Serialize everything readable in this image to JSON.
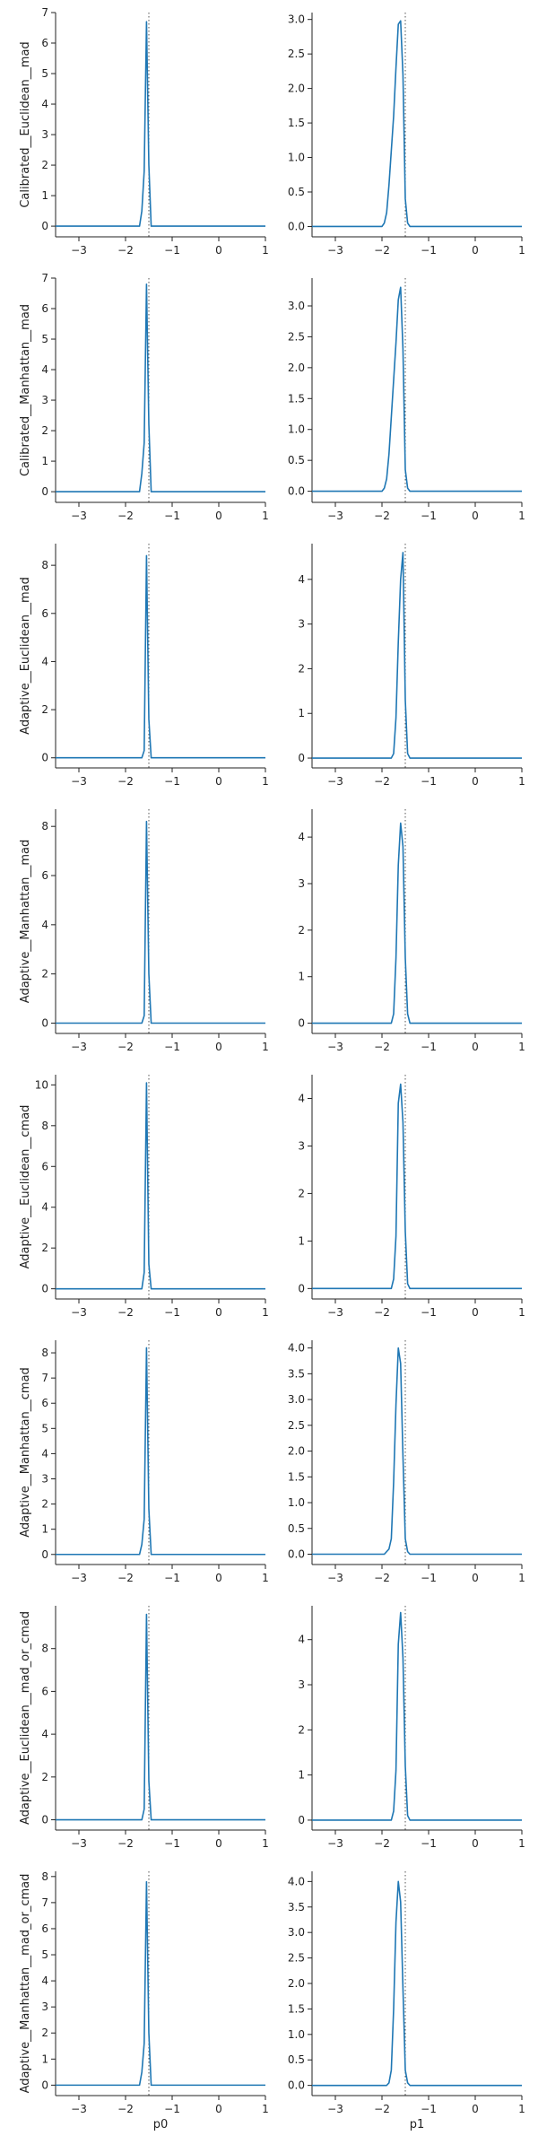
{
  "chart_data": {
    "type": "line",
    "layout": "8 rows x 2 columns of small-multiple density plots",
    "columns": [
      "p0",
      "p1"
    ],
    "series_color": "#1f77b4",
    "reference_line": {
      "x": -1.5,
      "style": "dotted",
      "color": "#555555"
    },
    "xlim": [
      -3.5,
      1.0
    ],
    "xticks": [
      -3,
      -2,
      -1,
      0,
      1
    ],
    "xtick_labels": [
      "−3",
      "−2",
      "−1",
      "0",
      "1"
    ],
    "rows": [
      {
        "ylabel": "Calibrated__Euclidean__mad",
        "panels": [
          {
            "ylim": [
              -0.35,
              7.0
            ],
            "yticks": [
              0,
              1,
              2,
              3,
              4,
              5,
              6,
              7
            ],
            "ytick_labels": [
              "0",
              "1",
              "2",
              "3",
              "4",
              "5",
              "6",
              "7"
            ],
            "x": [
              -3.5,
              -1.7,
              -1.65,
              -1.6,
              -1.55,
              -1.5,
              -1.45,
              -1.4,
              1.0
            ],
            "y": [
              0,
              0,
              0.5,
              1.8,
              6.7,
              2.0,
              0,
              0,
              0
            ]
          },
          {
            "ylim": [
              -0.15,
              3.1
            ],
            "yticks": [
              0,
              0.5,
              1,
              1.5,
              2,
              2.5,
              3
            ],
            "ytick_labels": [
              "0.0",
              "0.5",
              "1.0",
              "1.5",
              "2.0",
              "2.5",
              "3.0"
            ],
            "x": [
              -3.5,
              -2.0,
              -1.95,
              -1.9,
              -1.85,
              -1.8,
              -1.75,
              -1.7,
              -1.65,
              -1.6,
              -1.55,
              -1.5,
              -1.45,
              -1.4,
              1.0
            ],
            "y": [
              0,
              0,
              0.05,
              0.2,
              0.6,
              1.1,
              1.6,
              2.3,
              2.93,
              2.98,
              2.2,
              0.4,
              0.05,
              0,
              0
            ]
          }
        ]
      },
      {
        "ylabel": "Calibrated__Manhattan__mad",
        "panels": [
          {
            "ylim": [
              -0.35,
              7.0
            ],
            "yticks": [
              0,
              1,
              2,
              3,
              4,
              5,
              6,
              7
            ],
            "ytick_labels": [
              "0",
              "1",
              "2",
              "3",
              "4",
              "5",
              "6",
              "7"
            ],
            "x": [
              -3.5,
              -1.7,
              -1.65,
              -1.6,
              -1.55,
              -1.5,
              -1.45,
              -1.4,
              1.0
            ],
            "y": [
              0,
              0,
              0.6,
              1.6,
              6.8,
              2.2,
              0,
              0,
              0
            ]
          },
          {
            "ylim": [
              -0.18,
              3.45
            ],
            "yticks": [
              0,
              0.5,
              1,
              1.5,
              2,
              2.5,
              3
            ],
            "ytick_labels": [
              "0.0",
              "0.5",
              "1.0",
              "1.5",
              "2.0",
              "2.5",
              "3.0"
            ],
            "x": [
              -3.5,
              -2.0,
              -1.95,
              -1.9,
              -1.85,
              -1.8,
              -1.75,
              -1.7,
              -1.65,
              -1.6,
              -1.55,
              -1.5,
              -1.45,
              -1.4,
              1.0
            ],
            "y": [
              0,
              0,
              0.05,
              0.2,
              0.6,
              1.2,
              1.8,
              2.4,
              3.1,
              3.3,
              2.3,
              0.35,
              0.05,
              0,
              0
            ]
          }
        ]
      },
      {
        "ylabel": "Adaptive__Euclidean__mad",
        "panels": [
          {
            "ylim": [
              -0.42,
              8.9
            ],
            "yticks": [
              0,
              2,
              4,
              6,
              8
            ],
            "ytick_labels": [
              "0",
              "2",
              "4",
              "6",
              "8"
            ],
            "x": [
              -3.5,
              -1.65,
              -1.6,
              -1.55,
              -1.5,
              -1.45,
              -1.4,
              1.0
            ],
            "y": [
              0,
              0,
              0.3,
              8.4,
              1.6,
              0,
              0,
              0
            ]
          },
          {
            "ylim": [
              -0.22,
              4.8
            ],
            "yticks": [
              0,
              1,
              2,
              3,
              4
            ],
            "ytick_labels": [
              "0",
              "1",
              "2",
              "3",
              "4"
            ],
            "x": [
              -3.5,
              -1.8,
              -1.75,
              -1.7,
              -1.65,
              -1.6,
              -1.55,
              -1.5,
              -1.45,
              -1.4,
              1.0
            ],
            "y": [
              0,
              0,
              0.1,
              0.9,
              2.6,
              4.0,
              4.6,
              1.3,
              0.1,
              0,
              0
            ]
          }
        ]
      },
      {
        "ylabel": "Adaptive__Manhattan__mad",
        "panels": [
          {
            "ylim": [
              -0.42,
              8.7
            ],
            "yticks": [
              0,
              2,
              4,
              6,
              8
            ],
            "ytick_labels": [
              "0",
              "2",
              "4",
              "6",
              "8"
            ],
            "x": [
              -3.5,
              -1.65,
              -1.6,
              -1.55,
              -1.5,
              -1.45,
              -1.4,
              1.0
            ],
            "y": [
              0,
              0,
              0.3,
              8.2,
              2.0,
              0,
              0,
              0
            ]
          },
          {
            "ylim": [
              -0.22,
              4.6
            ],
            "yticks": [
              0,
              1,
              2,
              3,
              4
            ],
            "ytick_labels": [
              "0",
              "1",
              "2",
              "3",
              "4"
            ],
            "x": [
              -3.5,
              -1.8,
              -1.75,
              -1.7,
              -1.65,
              -1.6,
              -1.55,
              -1.5,
              -1.45,
              -1.4,
              1.0
            ],
            "y": [
              0,
              0,
              0.2,
              1.4,
              3.4,
              4.3,
              3.8,
              1.4,
              0.2,
              0,
              0
            ]
          }
        ]
      },
      {
        "ylabel": "Adaptive__Euclidean__cmad",
        "panels": [
          {
            "ylim": [
              -0.5,
              10.5
            ],
            "yticks": [
              0,
              2,
              4,
              6,
              8,
              10
            ],
            "ytick_labels": [
              "0",
              "2",
              "4",
              "6",
              "8",
              "10"
            ],
            "x": [
              -3.5,
              -1.65,
              -1.6,
              -1.55,
              -1.5,
              -1.45,
              -1.4,
              1.0
            ],
            "y": [
              0,
              0,
              0.8,
              10.1,
              1.2,
              0,
              0,
              0
            ]
          },
          {
            "ylim": [
              -0.22,
              4.5
            ],
            "yticks": [
              0,
              1,
              2,
              3,
              4
            ],
            "ytick_labels": [
              "0",
              "1",
              "2",
              "3",
              "4"
            ],
            "x": [
              -3.5,
              -1.8,
              -1.75,
              -1.7,
              -1.65,
              -1.6,
              -1.55,
              -1.5,
              -1.45,
              -1.4,
              1.0
            ],
            "y": [
              0,
              0,
              0.2,
              1.1,
              3.9,
              4.3,
              3.5,
              1.2,
              0.1,
              0,
              0
            ]
          }
        ]
      },
      {
        "ylabel": "Adaptive__Manhattan__cmad",
        "panels": [
          {
            "ylim": [
              -0.4,
              8.5
            ],
            "yticks": [
              0,
              1,
              2,
              3,
              4,
              5,
              6,
              7,
              8
            ],
            "ytick_labels": [
              "0",
              "1",
              "2",
              "3",
              "4",
              "5",
              "6",
              "7",
              "8"
            ],
            "x": [
              -3.5,
              -1.7,
              -1.65,
              -1.6,
              -1.55,
              -1.5,
              -1.45,
              -1.4,
              1.0
            ],
            "y": [
              0,
              0,
              0.4,
              1.4,
              8.2,
              1.8,
              0,
              0,
              0
            ]
          },
          {
            "ylim": [
              -0.2,
              4.15
            ],
            "yticks": [
              0,
              0.5,
              1,
              1.5,
              2,
              2.5,
              3,
              3.5,
              4
            ],
            "ytick_labels": [
              "0.0",
              "0.5",
              "1.0",
              "1.5",
              "2.0",
              "2.5",
              "3.0",
              "3.5",
              "4.0"
            ],
            "x": [
              -3.5,
              -1.95,
              -1.9,
              -1.85,
              -1.8,
              -1.75,
              -1.7,
              -1.65,
              -1.6,
              -1.55,
              -1.5,
              -1.45,
              -1.4,
              1.0
            ],
            "y": [
              0,
              0,
              0.05,
              0.1,
              0.3,
              1.4,
              2.9,
              4.0,
              3.7,
              1.9,
              0.3,
              0.05,
              0,
              0
            ]
          }
        ]
      },
      {
        "ylabel": "Adaptive__Euclidean__mad_or_cmad",
        "panels": [
          {
            "ylim": [
              -0.48,
              10.0
            ],
            "yticks": [
              0,
              2,
              4,
              6,
              8
            ],
            "ytick_labels": [
              "0",
              "2",
              "4",
              "6",
              "8"
            ],
            "x": [
              -3.5,
              -1.65,
              -1.6,
              -1.55,
              -1.5,
              -1.45,
              -1.4,
              1.0
            ],
            "y": [
              0,
              0,
              0.5,
              9.6,
              1.8,
              0,
              0,
              0
            ]
          },
          {
            "ylim": [
              -0.22,
              4.75
            ],
            "yticks": [
              0,
              1,
              2,
              3,
              4
            ],
            "ytick_labels": [
              "0",
              "1",
              "2",
              "3",
              "4"
            ],
            "x": [
              -3.5,
              -1.8,
              -1.75,
              -1.7,
              -1.65,
              -1.6,
              -1.55,
              -1.5,
              -1.45,
              -1.4,
              1.0
            ],
            "y": [
              0,
              0,
              0.2,
              1.1,
              3.9,
              4.6,
              3.6,
              1.2,
              0.1,
              0,
              0
            ]
          }
        ]
      },
      {
        "ylabel": "Adaptive__Manhattan__mad_or_cmad",
        "panels": [
          {
            "ylim": [
              -0.4,
              8.2
            ],
            "yticks": [
              0,
              1,
              2,
              3,
              4,
              5,
              6,
              7,
              8
            ],
            "ytick_labels": [
              "0",
              "1",
              "2",
              "3",
              "4",
              "5",
              "6",
              "7",
              "8"
            ],
            "x": [
              -3.5,
              -1.7,
              -1.65,
              -1.6,
              -1.55,
              -1.5,
              -1.45,
              -1.4,
              1.0
            ],
            "y": [
              0,
              0,
              0.5,
              1.6,
              7.8,
              2.0,
              0,
              0,
              0
            ]
          },
          {
            "ylim": [
              -0.2,
              4.2
            ],
            "yticks": [
              0,
              0.5,
              1,
              1.5,
              2,
              2.5,
              3,
              3.5,
              4
            ],
            "ytick_labels": [
              "0.0",
              "0.5",
              "1.0",
              "1.5",
              "2.0",
              "2.5",
              "3.0",
              "3.5",
              "4.0"
            ],
            "x": [
              -3.5,
              -1.9,
              -1.85,
              -1.8,
              -1.75,
              -1.7,
              -1.65,
              -1.6,
              -1.55,
              -1.5,
              -1.45,
              -1.4,
              1.0
            ],
            "y": [
              0,
              0,
              0.05,
              0.3,
              1.5,
              3.2,
              4.0,
              3.6,
              1.9,
              0.3,
              0.05,
              0,
              0
            ]
          }
        ]
      }
    ]
  }
}
